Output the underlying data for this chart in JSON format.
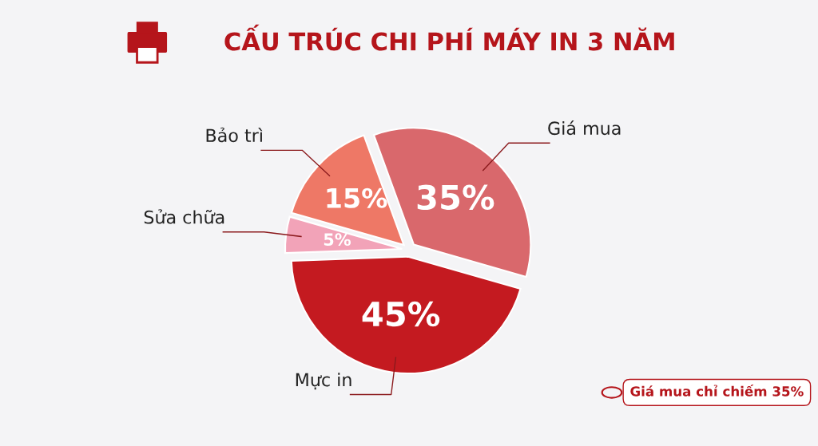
{
  "chart_data": {
    "type": "pie",
    "title": "CẤU TRÚC CHI PHÍ MÁY IN 3 NĂM",
    "categories": [
      "Giá mua",
      "Mực in",
      "Sửa chữa",
      "Bảo trì"
    ],
    "values": [
      35,
      45,
      5,
      15
    ],
    "colors": [
      "#d9686c",
      "#c41a20",
      "#f2a3b8",
      "#ee7866"
    ],
    "value_labels": [
      "35%",
      "45%",
      "5%",
      "15%"
    ],
    "legend": false,
    "annotations": [
      "Giá mua chỉ chiếm 35%"
    ]
  }
}
